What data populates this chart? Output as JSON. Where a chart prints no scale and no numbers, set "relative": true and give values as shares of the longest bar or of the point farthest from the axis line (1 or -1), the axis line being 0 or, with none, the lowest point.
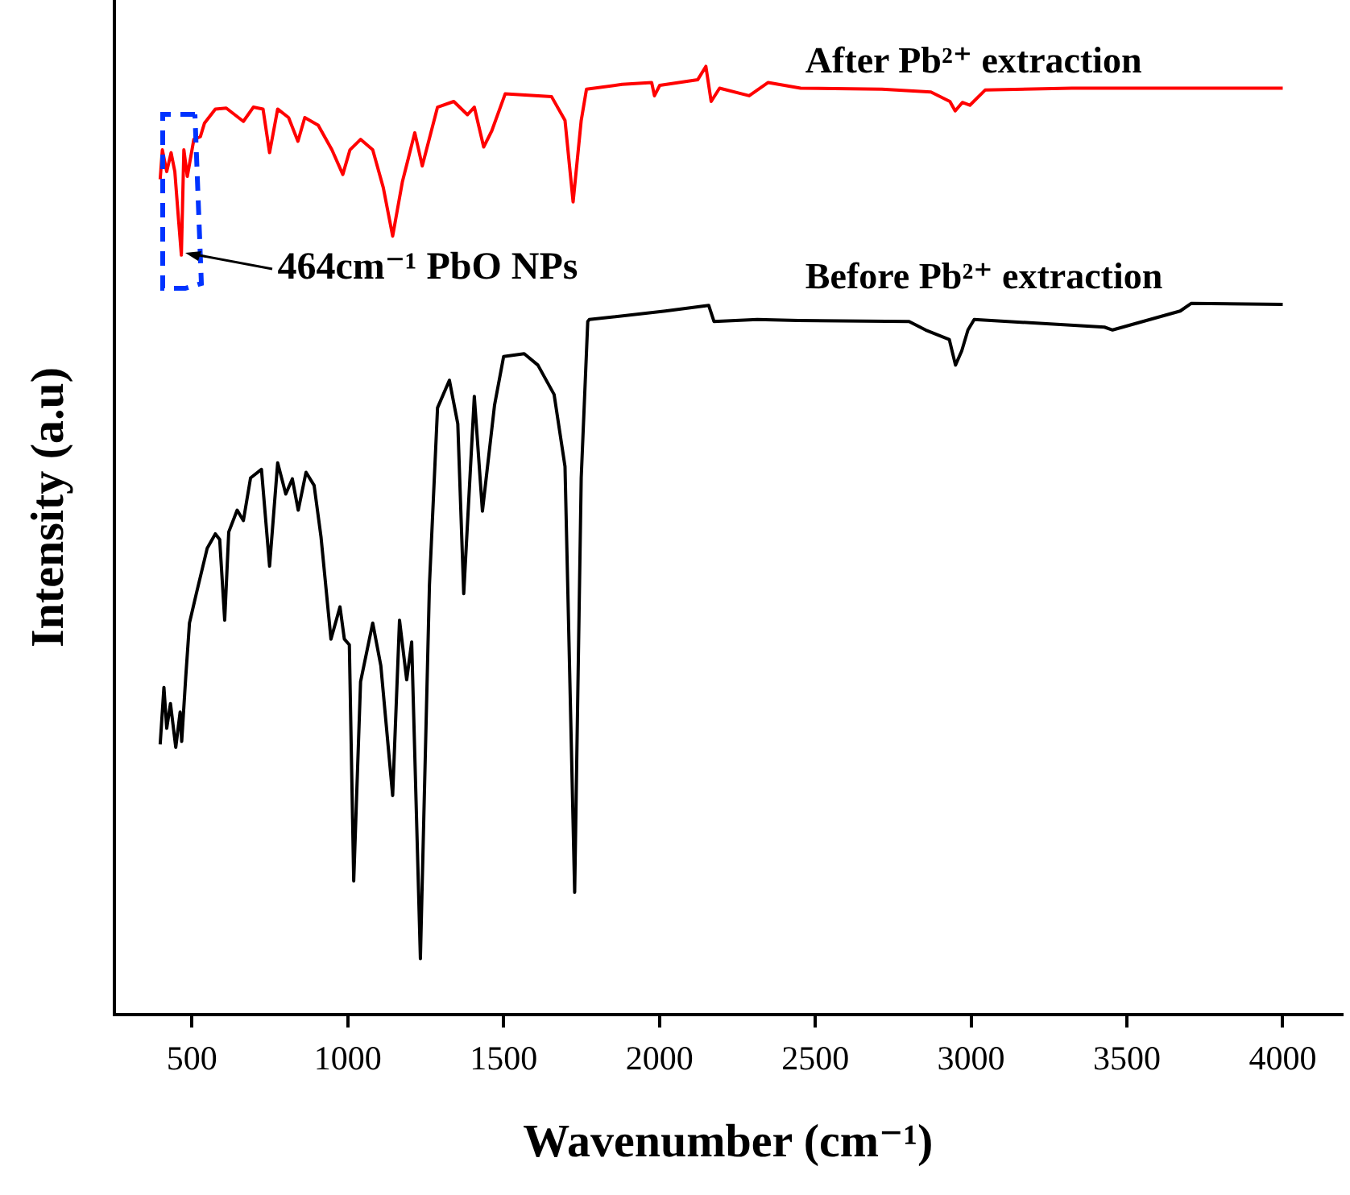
{
  "chart_data": {
    "type": "line",
    "relative": true,
    "xlabel": "Wavenumber (cm⁻¹)",
    "ylabel": "Intensity (a.u)",
    "xlim": [
      250,
      4190
    ],
    "xticks": [
      500,
      1000,
      1500,
      2000,
      2500,
      3000,
      3500,
      4000
    ],
    "legend": false,
    "marker": "none",
    "line_style": "solid",
    "annotations": [
      {
        "text": "464cm⁻¹ PbO NPs",
        "x": 464,
        "y": 0.8
      }
    ],
    "series": [
      {
        "name": "After Pb²⁺ extraction",
        "color": "#ff0000",
        "x": [
          398,
          405,
          419,
          433,
          445,
          457,
          466,
          474,
          485,
          506,
          527,
          540,
          575,
          610,
          665,
          697,
          728,
          749,
          775,
          810,
          840,
          862,
          905,
          949,
          984,
          1007,
          1041,
          1080,
          1114,
          1144,
          1175,
          1215,
          1239,
          1288,
          1340,
          1384,
          1406,
          1436,
          1462,
          1505,
          1654,
          1697,
          1723,
          1749,
          1766,
          1880,
          1975,
          1984,
          2001,
          2123,
          2149,
          2166,
          2193,
          2288,
          2349,
          2453,
          2714,
          2871,
          2932,
          2949,
          2972,
          2996,
          3045,
          3323,
          3671,
          4000
        ],
        "values": [
          0.881,
          0.912,
          0.889,
          0.909,
          0.889,
          0.838,
          0.801,
          0.912,
          0.884,
          0.923,
          0.926,
          0.94,
          0.955,
          0.956,
          0.942,
          0.957,
          0.955,
          0.909,
          0.955,
          0.946,
          0.921,
          0.946,
          0.938,
          0.912,
          0.886,
          0.912,
          0.923,
          0.912,
          0.872,
          0.821,
          0.878,
          0.93,
          0.895,
          0.957,
          0.963,
          0.949,
          0.957,
          0.915,
          0.932,
          0.971,
          0.968,
          0.943,
          0.857,
          0.943,
          0.976,
          0.981,
          0.983,
          0.969,
          0.98,
          0.986,
          1.0,
          0.963,
          0.977,
          0.969,
          0.983,
          0.977,
          0.976,
          0.973,
          0.963,
          0.953,
          0.962,
          0.959,
          0.975,
          0.977,
          0.977,
          0.977
        ]
      },
      {
        "name": "Before Pb²⁺ extraction",
        "color": "#000000",
        "x": [
          398,
          410,
          419,
          431,
          448,
          462,
          467,
          480,
          492,
          514,
          549,
          575,
          589,
          605,
          618,
          645,
          665,
          688,
          723,
          749,
          775,
          801,
          822,
          841,
          866,
          892,
          914,
          946,
          975,
          989,
          1005,
          1019,
          1041,
          1080,
          1106,
          1144,
          1166,
          1189,
          1205,
          1233,
          1262,
          1288,
          1326,
          1353,
          1372,
          1406,
          1432,
          1471,
          1500,
          1566,
          1610,
          1662,
          1697,
          1728,
          1749,
          1770,
          1775,
          2019,
          2158,
          2175,
          2314,
          2445,
          2801,
          2854,
          2930,
          2950,
          2970,
          2990,
          3010,
          3428,
          3454,
          3671,
          3706,
          4000
        ],
        "values": [
          0.285,
          0.345,
          0.302,
          0.328,
          0.282,
          0.319,
          0.288,
          0.356,
          0.413,
          0.444,
          0.492,
          0.507,
          0.501,
          0.416,
          0.509,
          0.532,
          0.521,
          0.566,
          0.575,
          0.473,
          0.582,
          0.549,
          0.565,
          0.532,
          0.572,
          0.558,
          0.504,
          0.396,
          0.43,
          0.396,
          0.39,
          0.141,
          0.351,
          0.413,
          0.368,
          0.231,
          0.416,
          0.353,
          0.393,
          0.059,
          0.453,
          0.64,
          0.669,
          0.623,
          0.444,
          0.652,
          0.531,
          0.643,
          0.694,
          0.697,
          0.685,
          0.654,
          0.578,
          0.129,
          0.566,
          0.731,
          0.733,
          0.742,
          0.748,
          0.731,
          0.733,
          0.732,
          0.731,
          0.722,
          0.712,
          0.685,
          0.7,
          0.722,
          0.733,
          0.725,
          0.722,
          0.742,
          0.75,
          0.749
        ]
      }
    ]
  }
}
